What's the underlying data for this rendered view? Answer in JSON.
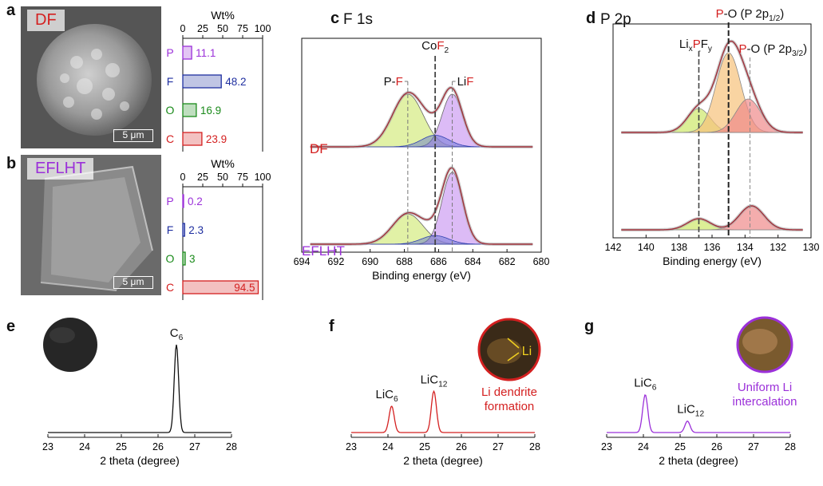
{
  "panels": {
    "a": {
      "label": "a",
      "sample": "DF",
      "scale": "5 μm"
    },
    "b": {
      "label": "b",
      "sample": "EFLHT",
      "scale": "5 μm"
    },
    "c": {
      "label": "c",
      "title": "F 1s"
    },
    "d": {
      "label": "d",
      "title": "P 2p"
    },
    "e": {
      "label": "e"
    },
    "f": {
      "label": "f"
    },
    "g": {
      "label": "g"
    }
  },
  "colors": {
    "P": "#9b30d9",
    "F": "#1f2fa0",
    "O": "#1a8a1a",
    "C": "#d42020",
    "DF": "#d42020",
    "EFLHT": "#9b30d9"
  },
  "chart_data": [
    {
      "type": "bar",
      "orientation": "horizontal",
      "panel": "a",
      "title": "Wt%",
      "categories": [
        "P",
        "F",
        "O",
        "C"
      ],
      "values": [
        11.1,
        48.2,
        16.9,
        23.9
      ],
      "xlim": [
        0,
        100
      ],
      "ticks": [
        "0",
        "25",
        "50",
        "75",
        "100"
      ]
    },
    {
      "type": "bar",
      "orientation": "horizontal",
      "panel": "b",
      "title": "Wt%",
      "categories": [
        "P",
        "F",
        "O",
        "C"
      ],
      "values": [
        0.2,
        2.3,
        3.0,
        94.5
      ],
      "xlim": [
        0,
        100
      ],
      "ticks": [
        "0",
        "25",
        "50",
        "75",
        "100"
      ]
    },
    {
      "type": "line",
      "panel": "c",
      "title": "F 1s",
      "xlabel": "Binding energy (eV)",
      "xlim": [
        694,
        680
      ],
      "xticks": [
        "694",
        "692",
        "690",
        "688",
        "686",
        "684",
        "682",
        "680"
      ],
      "series": [
        {
          "name": "DF"
        },
        {
          "name": "EFLHT"
        }
      ],
      "peaks": {
        "DF": [
          {
            "name": "P-F",
            "center": 687.8,
            "height": 1.0
          },
          {
            "name": "LiF",
            "center": 685.2,
            "height": 1.0
          },
          {
            "name": "CoF2",
            "center": 686.2,
            "height": 0.22
          }
        ],
        "EFLHT": [
          {
            "name": "P-F",
            "center": 687.8,
            "height": 0.42
          },
          {
            "name": "LiF",
            "center": 685.2,
            "height": 1.0
          },
          {
            "name": "CoF2",
            "center": 686.2,
            "height": 0.12
          }
        ]
      },
      "annotations": {
        "pf_prefix": "P-",
        "pf_el": "F",
        "cof_pre": "Co",
        "cof_el": "F",
        "cof_sub": "2",
        "lif_pre": "Li",
        "lif_el": "F"
      }
    },
    {
      "type": "line",
      "panel": "d",
      "title": "P 2p",
      "xlabel": "Binding energy (eV)",
      "xlim": [
        142,
        130
      ],
      "xticks": [
        "142",
        "140",
        "138",
        "136",
        "134",
        "132",
        "130"
      ],
      "series": [
        {
          "name": "DF"
        },
        {
          "name": "EFLHT"
        }
      ],
      "peaks": {
        "DF": [
          {
            "name": "LixPFy",
            "center": 136.8,
            "height": 0.3
          },
          {
            "name": "P-O (P 2p1/2)",
            "center": 135.0,
            "height": 1.0
          },
          {
            "name": "P-O (P 2p3/2)",
            "center": 133.8,
            "height": 0.42
          }
        ],
        "EFLHT": [
          {
            "name": "LixPFy",
            "center": 136.8,
            "height": 0.14
          },
          {
            "name": "P-O (P 2p1/2)",
            "center": 135.0,
            "height": 0.0
          },
          {
            "name": "P-O (P 2p3/2)",
            "center": 133.6,
            "height": 0.3
          }
        ]
      },
      "annotations": {
        "lipf_li": "Li",
        "lipf_x": "x",
        "lipf_p": "P",
        "lipf_f": "F",
        "lipf_y": "y",
        "po1_p": "P",
        "po1_rest": "-O (P 2p",
        "po1_sub": "1/2",
        "po1_end": ")",
        "po2_p": "P",
        "po2_rest": "-O (P 2p",
        "po2_sub": "3/2",
        "po2_end": ")"
      }
    },
    {
      "type": "line",
      "panel": "e",
      "xlabel": "2 theta (degree)",
      "xlim": [
        23,
        28
      ],
      "xticks": [
        "23",
        "24",
        "25",
        "26",
        "27",
        "28"
      ],
      "peaks": [
        {
          "name": "C6",
          "center": 26.5,
          "height": 1.0
        }
      ],
      "annotations": {
        "c6_main": "C",
        "c6_sub": "6"
      }
    },
    {
      "type": "line",
      "panel": "f",
      "xlabel": "2 theta (degree)",
      "xlim": [
        23,
        28
      ],
      "xticks": [
        "23",
        "24",
        "25",
        "26",
        "27",
        "28"
      ],
      "peaks": [
        {
          "name": "LiC6",
          "center": 24.1,
          "height": 0.3
        },
        {
          "name": "LiC12",
          "center": 25.25,
          "height": 0.47
        }
      ],
      "annotations": {
        "lic6_main": "LiC",
        "lic6_sub": "6",
        "lic12_main": "LiC",
        "lic12_sub": "12",
        "inset_label": "Li",
        "caption_line1": "Li dendrite",
        "caption_line2": "formation"
      }
    },
    {
      "type": "line",
      "panel": "g",
      "xlabel": "2 theta (degree)",
      "xlim": [
        23,
        28
      ],
      "xticks": [
        "23",
        "24",
        "25",
        "26",
        "27",
        "28"
      ],
      "peaks": [
        {
          "name": "LiC6",
          "center": 24.05,
          "height": 0.43
        },
        {
          "name": "LiC12",
          "center": 25.2,
          "height": 0.13
        }
      ],
      "annotations": {
        "lic6_main": "LiC",
        "lic6_sub": "6",
        "lic12_main": "LiC",
        "lic12_sub": "12",
        "caption_line1": "Uniform Li",
        "caption_line2": "intercalation"
      }
    }
  ]
}
